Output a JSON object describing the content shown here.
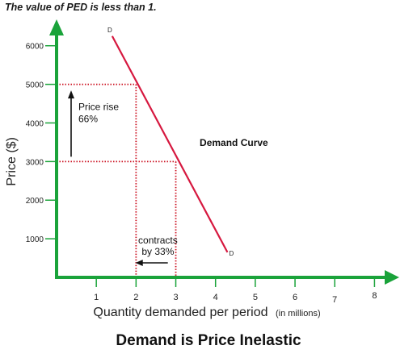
{
  "header": {
    "note": "The value of PED is less than 1."
  },
  "chart_data": {
    "type": "line",
    "title": "Demand is Price Inelastic",
    "xlabel": "Quantity demanded per period",
    "xlabel_unit": "(in millions)",
    "ylabel": "Price ($)",
    "xlim": [
      0,
      8.5
    ],
    "ylim": [
      0,
      6600
    ],
    "x_ticks": [
      "1",
      "2",
      "3",
      "4",
      "5",
      "6",
      "7",
      "8"
    ],
    "y_ticks": [
      "1000",
      "2000",
      "3000",
      "4000",
      "5000",
      "6000"
    ],
    "grid": false,
    "series": [
      {
        "name": "Demand Curve",
        "color": "#d6183f",
        "x": [
          1.4,
          4.3
        ],
        "y": [
          6250,
          650
        ],
        "start_label": "D",
        "end_label": "D"
      }
    ],
    "reference_points": [
      {
        "x": 2,
        "y": 5000
      },
      {
        "x": 3,
        "y": 3000
      }
    ],
    "annotations": {
      "price_line1": "Price rise",
      "price_line2": "66%",
      "qty_line1": "contracts",
      "qty_line2": "by 33%"
    },
    "colors": {
      "axis": "#1aa33a",
      "guide": "#cc1020",
      "curve": "#d6183f"
    }
  }
}
